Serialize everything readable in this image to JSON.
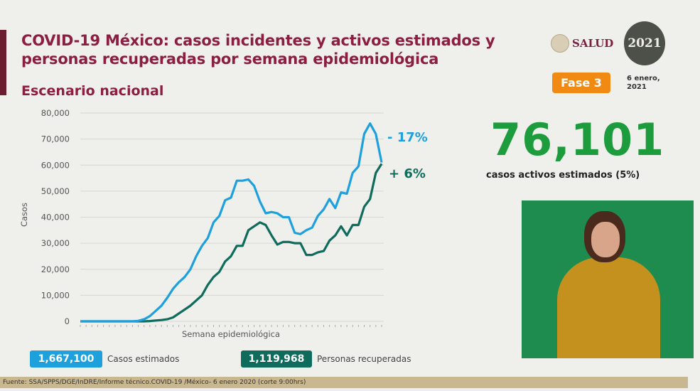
{
  "header": {
    "title_line1": "COVID-19 México: casos incidentes y activos estimados y",
    "title_line2": "personas recuperadas por semana epidemiológica",
    "subtitle": "Escenario nacional",
    "logo_salud": "SALUD",
    "logo_2021": "2021",
    "phase": "Fase 3",
    "date": "6 enero, 2021"
  },
  "kpi": {
    "value": "76,101",
    "caption": "casos activos estimados (5%)"
  },
  "totals": {
    "casos_value": "1,667,100",
    "casos_label": "Casos estimados",
    "recuperadas_value": "1,119,968",
    "recuperadas_label": "Personas recuperadas"
  },
  "footer": "Fuente: SSA/SPPS/DGE/InDRE/Informe técnico.COVID-19 /México- 6 enero 2020 (corte 9:00hrs)",
  "colors": {
    "estimados": "#1ea0dc",
    "recuperadas": "#0f6b5b",
    "title": "#8c1f41",
    "kpi": "#1c9c3c",
    "phase": "#f08a12"
  },
  "chart_data": {
    "type": "line",
    "xlabel": "Semana epidemiológica",
    "ylabel": "Casos",
    "ylim": [
      0,
      80000
    ],
    "yticks": [
      "0",
      "10,000",
      "20,000",
      "30,000",
      "40,000",
      "50,000",
      "60,000",
      "70,000",
      "80,000"
    ],
    "grid": true,
    "series": [
      {
        "key": "estimados",
        "color": "#1ea0dc",
        "annotation": "- 17%",
        "values": [
          0,
          0,
          0,
          0,
          0,
          0,
          0,
          0,
          0,
          0,
          200,
          800,
          2000,
          4000,
          6000,
          9000,
          12500,
          15000,
          17000,
          20000,
          25000,
          29000,
          32000,
          38000,
          40500,
          46500,
          47500,
          54000,
          54000,
          54500,
          52000,
          46000,
          41500,
          42000,
          41500,
          40000,
          40000,
          34000,
          33500,
          35000,
          36000,
          40500,
          43000,
          47000,
          43500,
          49500,
          49000,
          57000,
          59500,
          72000,
          76000,
          72000,
          61000
        ]
      },
      {
        "key": "recuperadas",
        "color": "#0f6b5b",
        "annotation": "+ 6%",
        "values": [
          0,
          0,
          0,
          0,
          0,
          0,
          0,
          0,
          0,
          0,
          0,
          0,
          100,
          300,
          500,
          800,
          1500,
          3000,
          4500,
          6000,
          8000,
          10000,
          14000,
          17000,
          19000,
          23000,
          25000,
          29000,
          29000,
          35000,
          36500,
          38000,
          37000,
          33000,
          29500,
          30500,
          30500,
          30000,
          30000,
          25500,
          25500,
          26500,
          27000,
          31000,
          33000,
          36500,
          33000,
          37000,
          37000,
          44000,
          47000,
          57000,
          60500
        ]
      }
    ]
  }
}
